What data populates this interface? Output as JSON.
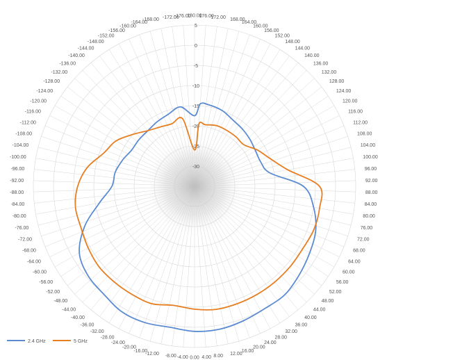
{
  "chart_data": {
    "type": "radar",
    "angle_labels": [
      "180.00",
      "176.00",
      "172.00",
      "168.00",
      "164.00",
      "160.00",
      "156.00",
      "152.00",
      "148.00",
      "144.00",
      "140.00",
      "136.00",
      "132.00",
      "128.00",
      "124.00",
      "120.00",
      "116.00",
      "112.00",
      "108.00",
      "104.00",
      "100.00",
      "96.00",
      "92.00",
      "88.00",
      "84.00",
      "80.00",
      "76.00",
      "72.00",
      "68.00",
      "64.00",
      "60.00",
      "56.00",
      "52.00",
      "48.00",
      "44.00",
      "40.00",
      "36.00",
      "32.00",
      "28.00",
      "24.00",
      "20.00",
      "16.00",
      "12.00",
      "8.00",
      "4.00",
      "0.00",
      "-4.00",
      "-8.00",
      "-12.00",
      "-16.00",
      "-20.00",
      "-24.00",
      "-28.00",
      "-32.00",
      "-36.00",
      "-40.00",
      "-44.00",
      "-48.00",
      "-52.00",
      "-56.00",
      "-60.00",
      "-64.00",
      "-68.00",
      "-72.00",
      "-76.00",
      "-80.00",
      "-84.00",
      "-88.00",
      "-92.00",
      "-96.00",
      "-100.00",
      "-104.00",
      "-108.00",
      "-112.00",
      "-116.00",
      "-120.00",
      "-124.00",
      "-128.00",
      "-132.00",
      "-136.00",
      "-140.00",
      "-144.00",
      "-148.00",
      "-152.00",
      "-156.00",
      "-160.00",
      "-164.00",
      "-168.00",
      "-172.00",
      "-176.00"
    ],
    "radial_ticks": [
      5,
      0,
      -5,
      -10,
      -15,
      -20,
      -25,
      -30
    ],
    "rlim": [
      -35,
      5
    ],
    "grid": true,
    "legend": "bottom-left",
    "series": [
      {
        "name": "2.4 GHz",
        "color": "#5b8bd0",
        "angles": [
          -180,
          -170,
          -160,
          -150,
          -140,
          -130,
          -120,
          -110,
          -100,
          -90,
          -80,
          -70,
          -60,
          -50,
          -40,
          -30,
          -20,
          -10,
          0,
          10,
          20,
          30,
          40,
          50,
          60,
          70,
          80,
          90,
          100,
          110,
          120,
          130,
          140,
          150,
          160,
          170,
          176,
          180
        ],
        "values": [
          -17.5,
          -15,
          -16,
          -16.5,
          -17,
          -17,
          -17,
          -16,
          -15,
          -14.5,
          -11,
          -6,
          -2,
          -0.5,
          0,
          1,
          1,
          0.5,
          1,
          1,
          0.5,
          0,
          0,
          -1,
          -2,
          -3,
          -5,
          -8,
          -16,
          -17.5,
          -17.5,
          -17,
          -16.5,
          -16,
          -15,
          -14.5,
          -14.5,
          -17.5
        ]
      },
      {
        "name": "5 GHz",
        "color": "#e67e22",
        "angles": [
          -180,
          -170,
          -160,
          -150,
          -140,
          -130,
          -120,
          -110,
          -100,
          -90,
          -80,
          -70,
          -60,
          -50,
          -40,
          -30,
          -20,
          -10,
          0,
          10,
          20,
          30,
          40,
          50,
          60,
          70,
          80,
          90,
          100,
          110,
          120,
          130,
          140,
          150,
          160,
          170,
          176,
          180
        ],
        "values": [
          -26,
          -18,
          -18.5,
          -18,
          -17,
          -15,
          -12.5,
          -11,
          -8,
          -6,
          -5,
          -5,
          -4.5,
          -4,
          -4,
          -4,
          -4,
          -5,
          -4.5,
          -4,
          -4,
          -4,
          -4,
          -4,
          -4,
          -3.5,
          -3.5,
          -4,
          -11.5,
          -15,
          -17,
          -19,
          -19,
          -19,
          -19,
          -19.5,
          -19.5,
          -26
        ]
      }
    ]
  }
}
